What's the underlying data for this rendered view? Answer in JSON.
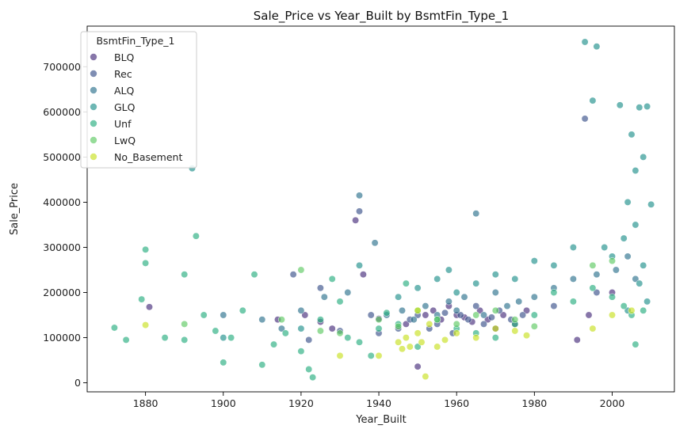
{
  "chart_data": {
    "type": "scatter",
    "title": "Sale_Price vs Year_Built by BsmtFin_Type_1",
    "xlabel": "Year_Built",
    "ylabel": "Sale_Price",
    "xlim": [
      1865,
      2016
    ],
    "ylim": [
      -20000,
      790000
    ],
    "xticks": [
      1880,
      1900,
      1920,
      1940,
      1960,
      1980,
      2000
    ],
    "yticks": [
      0,
      100000,
      200000,
      300000,
      400000,
      500000,
      600000,
      700000
    ],
    "grid": false,
    "legend": {
      "title": "BsmtFin_Type_1",
      "placement": "top-left"
    },
    "series": [
      {
        "name": "BLQ",
        "color": "#472d7b",
        "points": [
          [
            1881,
            168000
          ],
          [
            1914,
            140000
          ],
          [
            1921,
            150000
          ],
          [
            1925,
            135000
          ],
          [
            1928,
            120000
          ],
          [
            1934,
            360000
          ],
          [
            1936,
            240000
          ],
          [
            1940,
            142000
          ],
          [
            1947,
            130000
          ],
          [
            1950,
            36000
          ],
          [
            1952,
            150000
          ],
          [
            1954,
            160000
          ],
          [
            1956,
            140000
          ],
          [
            1958,
            170000
          ],
          [
            1960,
            150000
          ],
          [
            1962,
            145000
          ],
          [
            1964,
            135000
          ],
          [
            1966,
            160000
          ],
          [
            1968,
            140000
          ],
          [
            1970,
            120000
          ],
          [
            1972,
            150000
          ],
          [
            1975,
            130000
          ],
          [
            1978,
            160000
          ],
          [
            1991,
            95000
          ],
          [
            1994,
            150000
          ],
          [
            2000,
            200000
          ]
        ]
      },
      {
        "name": "Rec",
        "color": "#3b518b",
        "points": [
          [
            1918,
            240000
          ],
          [
            1922,
            95000
          ],
          [
            1925,
            210000
          ],
          [
            1930,
            115000
          ],
          [
            1935,
            380000
          ],
          [
            1938,
            150000
          ],
          [
            1940,
            110000
          ],
          [
            1945,
            120000
          ],
          [
            1948,
            140000
          ],
          [
            1950,
            150000
          ],
          [
            1953,
            120000
          ],
          [
            1955,
            130000
          ],
          [
            1957,
            155000
          ],
          [
            1959,
            110000
          ],
          [
            1961,
            150000
          ],
          [
            1963,
            140000
          ],
          [
            1965,
            170000
          ],
          [
            1967,
            130000
          ],
          [
            1969,
            145000
          ],
          [
            1971,
            160000
          ],
          [
            1974,
            140000
          ],
          [
            1977,
            150000
          ],
          [
            1985,
            170000
          ],
          [
            1993,
            585000
          ],
          [
            1996,
            200000
          ]
        ]
      },
      {
        "name": "ALQ",
        "color": "#2c718e",
        "points": [
          [
            1900,
            150000
          ],
          [
            1910,
            140000
          ],
          [
            1915,
            120000
          ],
          [
            1920,
            160000
          ],
          [
            1926,
            190000
          ],
          [
            1932,
            200000
          ],
          [
            1935,
            415000
          ],
          [
            1939,
            310000
          ],
          [
            1942,
            150000
          ],
          [
            1946,
            160000
          ],
          [
            1949,
            140000
          ],
          [
            1952,
            170000
          ],
          [
            1955,
            150000
          ],
          [
            1958,
            180000
          ],
          [
            1960,
            160000
          ],
          [
            1962,
            190000
          ],
          [
            1965,
            375000
          ],
          [
            1967,
            150000
          ],
          [
            1970,
            200000
          ],
          [
            1973,
            170000
          ],
          [
            1976,
            180000
          ],
          [
            1980,
            190000
          ],
          [
            1985,
            210000
          ],
          [
            1990,
            230000
          ],
          [
            1996,
            240000
          ],
          [
            2001,
            250000
          ],
          [
            2004,
            280000
          ],
          [
            2006,
            230000
          ]
        ]
      },
      {
        "name": "GLQ",
        "color": "#21918c",
        "points": [
          [
            1892,
            475000
          ],
          [
            1900,
            100000
          ],
          [
            1920,
            120000
          ],
          [
            1935,
            260000
          ],
          [
            1945,
            190000
          ],
          [
            1950,
            210000
          ],
          [
            1955,
            230000
          ],
          [
            1958,
            250000
          ],
          [
            1960,
            200000
          ],
          [
            1965,
            220000
          ],
          [
            1970,
            240000
          ],
          [
            1975,
            230000
          ],
          [
            1980,
            270000
          ],
          [
            1985,
            260000
          ],
          [
            1990,
            300000
          ],
          [
            1993,
            755000
          ],
          [
            1995,
            625000
          ],
          [
            1996,
            745000
          ],
          [
            1998,
            300000
          ],
          [
            2000,
            280000
          ],
          [
            2002,
            615000
          ],
          [
            2003,
            320000
          ],
          [
            2004,
            400000
          ],
          [
            2005,
            550000
          ],
          [
            2006,
            470000
          ],
          [
            2007,
            610000
          ],
          [
            2008,
            500000
          ],
          [
            2009,
            612000
          ],
          [
            2010,
            395000
          ],
          [
            2006,
            350000
          ],
          [
            2008,
            260000
          ],
          [
            2009,
            180000
          ],
          [
            2007,
            220000
          ],
          [
            2004,
            160000
          ]
        ]
      },
      {
        "name": "Unf",
        "color": "#28ae80",
        "points": [
          [
            1872,
            122000
          ],
          [
            1875,
            95000
          ],
          [
            1879,
            185000
          ],
          [
            1880,
            295000
          ],
          [
            1880,
            265000
          ],
          [
            1885,
            100000
          ],
          [
            1890,
            240000
          ],
          [
            1890,
            95000
          ],
          [
            1893,
            325000
          ],
          [
            1895,
            150000
          ],
          [
            1898,
            115000
          ],
          [
            1900,
            45000
          ],
          [
            1902,
            100000
          ],
          [
            1905,
            160000
          ],
          [
            1908,
            240000
          ],
          [
            1910,
            40000
          ],
          [
            1913,
            85000
          ],
          [
            1916,
            110000
          ],
          [
            1920,
            70000
          ],
          [
            1922,
            30000
          ],
          [
            1923,
            12000
          ],
          [
            1925,
            140000
          ],
          [
            1928,
            230000
          ],
          [
            1930,
            180000
          ],
          [
            1932,
            100000
          ],
          [
            1935,
            90000
          ],
          [
            1938,
            60000
          ],
          [
            1940,
            120000
          ],
          [
            1942,
            155000
          ],
          [
            1945,
            130000
          ],
          [
            1947,
            220000
          ],
          [
            1950,
            80000
          ],
          [
            1955,
            140000
          ],
          [
            1960,
            120000
          ],
          [
            1965,
            110000
          ],
          [
            1970,
            100000
          ],
          [
            1975,
            130000
          ],
          [
            1980,
            150000
          ],
          [
            1985,
            200000
          ],
          [
            1990,
            180000
          ],
          [
            1995,
            210000
          ],
          [
            2000,
            190000
          ],
          [
            2003,
            170000
          ],
          [
            2006,
            85000
          ],
          [
            2008,
            160000
          ],
          [
            2005,
            150000
          ]
        ]
      },
      {
        "name": "LwQ",
        "color": "#5ec962",
        "points": [
          [
            1890,
            130000
          ],
          [
            1915,
            140000
          ],
          [
            1920,
            250000
          ],
          [
            1925,
            115000
          ],
          [
            1930,
            110000
          ],
          [
            1940,
            140000
          ],
          [
            1945,
            125000
          ],
          [
            1950,
            160000
          ],
          [
            1955,
            140000
          ],
          [
            1960,
            130000
          ],
          [
            1965,
            150000
          ],
          [
            1970,
            160000
          ],
          [
            1975,
            140000
          ],
          [
            1980,
            125000
          ],
          [
            1995,
            260000
          ],
          [
            2000,
            270000
          ]
        ]
      },
      {
        "name": "No_Basement",
        "color": "#c8e020",
        "points": [
          [
            1880,
            128000
          ],
          [
            1930,
            60000
          ],
          [
            1940,
            60000
          ],
          [
            1945,
            90000
          ],
          [
            1946,
            75000
          ],
          [
            1947,
            100000
          ],
          [
            1948,
            80000
          ],
          [
            1950,
            110000
          ],
          [
            1950,
            160000
          ],
          [
            1951,
            90000
          ],
          [
            1952,
            14000
          ],
          [
            1953,
            130000
          ],
          [
            1955,
            80000
          ],
          [
            1957,
            95000
          ],
          [
            1960,
            110000
          ],
          [
            1965,
            100000
          ],
          [
            1970,
            120000
          ],
          [
            1975,
            115000
          ],
          [
            1978,
            105000
          ],
          [
            1995,
            120000
          ],
          [
            2000,
            150000
          ],
          [
            2005,
            160000
          ]
        ]
      }
    ]
  }
}
